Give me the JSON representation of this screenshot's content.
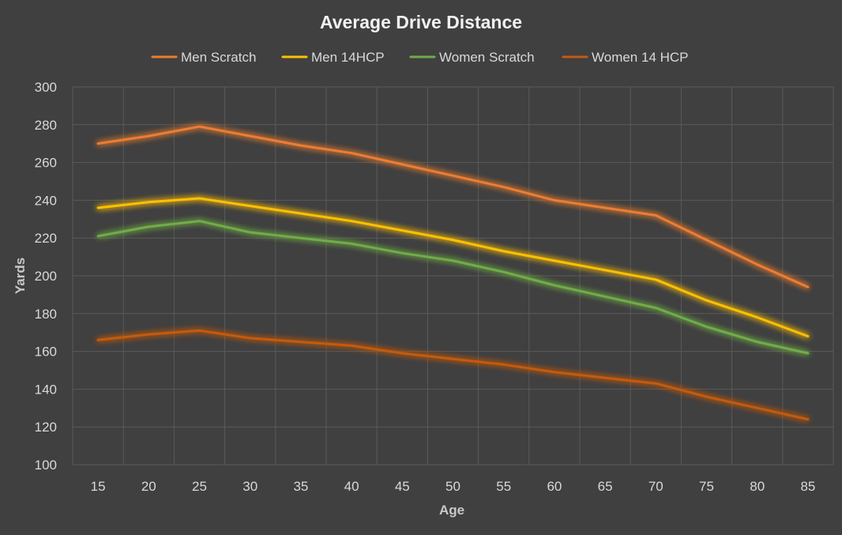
{
  "chart_data": {
    "type": "line",
    "title": "Average Drive Distance",
    "xlabel": "Age",
    "ylabel": "Yards",
    "x": [
      15,
      20,
      25,
      30,
      35,
      40,
      45,
      50,
      55,
      60,
      65,
      70,
      75,
      80,
      85
    ],
    "ylim": [
      100,
      300
    ],
    "yticks": [
      100,
      120,
      140,
      160,
      180,
      200,
      220,
      240,
      260,
      280,
      300
    ],
    "grid": true,
    "legend_position": "top",
    "series": [
      {
        "name": "Men Scratch",
        "color": "#ed7d31",
        "values": [
          270,
          274,
          279,
          274,
          269,
          265,
          259,
          253,
          247,
          240,
          236,
          232,
          219,
          206,
          194
        ]
      },
      {
        "name": "Men 14HCP",
        "color": "#ffc000",
        "values": [
          236,
          239,
          241,
          237,
          233,
          229,
          224,
          219,
          213,
          208,
          203,
          198,
          187,
          178,
          168
        ]
      },
      {
        "name": "Women Scratch",
        "color": "#70ad47",
        "values": [
          221,
          226,
          229,
          223,
          220,
          217,
          212,
          208,
          202,
          195,
          189,
          183,
          173,
          165,
          159
        ]
      },
      {
        "name": "Women 14 HCP",
        "color": "#c55a11",
        "values": [
          166,
          169,
          171,
          167,
          165,
          163,
          159,
          156,
          153,
          149,
          146,
          143,
          136,
          130,
          124
        ]
      }
    ]
  }
}
